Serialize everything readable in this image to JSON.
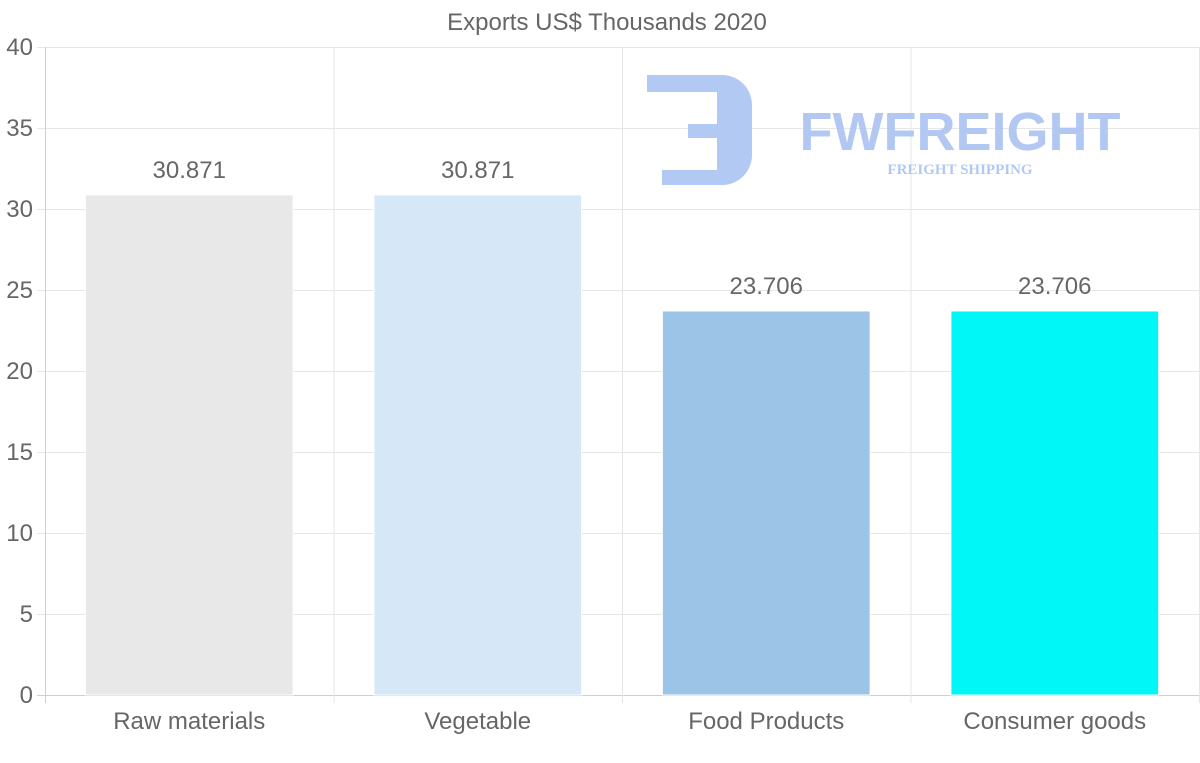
{
  "chart_data": {
    "type": "bar",
    "title": "Exports US$ Thousands 2020",
    "categories": [
      "Raw materials",
      "Vegetable",
      "Food Products",
      "Consumer goods"
    ],
    "values": [
      30.871,
      30.871,
      23.706,
      23.706
    ],
    "value_labels": [
      "30.871",
      "30.871",
      "23.706",
      "23.706"
    ],
    "colors": [
      "#e8e8e8",
      "#d6e8f8",
      "#9cc4e6",
      "#00f7f7"
    ],
    "ylim": [
      0,
      40
    ],
    "yticks": [
      0,
      5,
      10,
      15,
      20,
      25,
      30,
      35,
      40
    ],
    "xlabel": "",
    "ylabel": "",
    "grid": true,
    "legend": "none"
  },
  "watermark": {
    "brand": "FWFREIGHT",
    "tagline": "FREIGHT SHIPPING",
    "color": "#aec6f3"
  }
}
